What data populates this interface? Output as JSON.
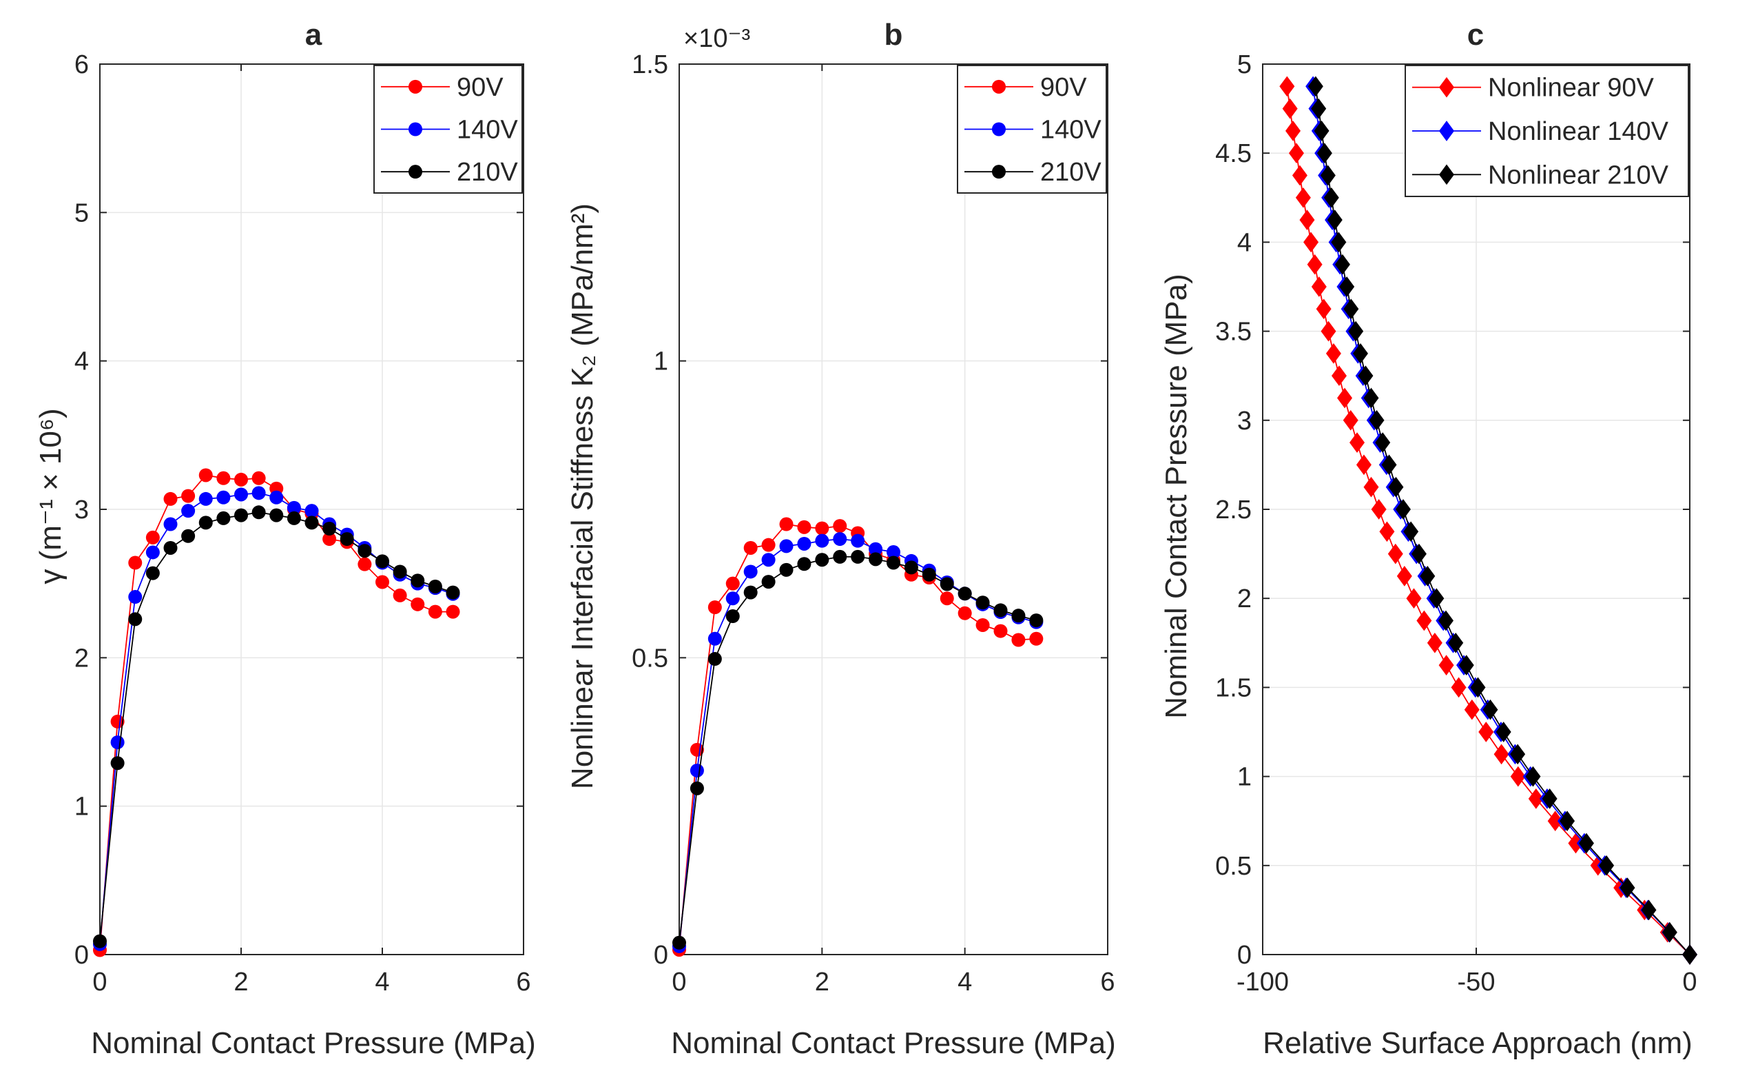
{
  "chart_data": [
    {
      "type": "line",
      "title": "a",
      "xlabel": "Nominal Contact Pressure (MPa)",
      "ylabel": "γ (m⁻¹ × 10⁶)",
      "xlim": [
        0,
        6
      ],
      "ylim": [
        0,
        6
      ],
      "xticks": [
        0,
        2,
        4,
        6
      ],
      "yticks": [
        0,
        1,
        2,
        3,
        4,
        5,
        6
      ],
      "x_tick_labels": [
        "0",
        "2",
        "4",
        "6"
      ],
      "y_tick_labels": [
        "0",
        "1",
        "2",
        "3",
        "4",
        "5",
        "6"
      ],
      "grid": true,
      "legend_position": "top-right",
      "marker": "circle",
      "x": [
        0,
        0.25,
        0.5,
        0.75,
        1,
        1.25,
        1.5,
        1.75,
        2,
        2.25,
        2.5,
        2.75,
        3,
        3.25,
        3.5,
        3.75,
        4,
        4.25,
        4.5,
        4.75,
        5
      ],
      "series": [
        {
          "name": "90V",
          "color": "#ff0000",
          "values": [
            0.03,
            1.57,
            2.64,
            2.81,
            3.07,
            3.09,
            3.23,
            3.21,
            3.2,
            3.21,
            3.14,
            3.0,
            2.97,
            2.8,
            2.78,
            2.63,
            2.51,
            2.42,
            2.36,
            2.31,
            2.31
          ]
        },
        {
          "name": "140V",
          "color": "#0000ff",
          "values": [
            0.07,
            1.43,
            2.41,
            2.71,
            2.9,
            2.99,
            3.07,
            3.08,
            3.1,
            3.11,
            3.08,
            3.01,
            2.99,
            2.9,
            2.83,
            2.74,
            2.64,
            2.56,
            2.5,
            2.47,
            2.43
          ]
        },
        {
          "name": "210V",
          "color": "#000000",
          "values": [
            0.09,
            1.29,
            2.26,
            2.57,
            2.74,
            2.82,
            2.91,
            2.94,
            2.96,
            2.98,
            2.96,
            2.94,
            2.91,
            2.87,
            2.8,
            2.72,
            2.65,
            2.58,
            2.52,
            2.48,
            2.44
          ]
        }
      ]
    },
    {
      "type": "line",
      "title": "b",
      "xlabel": "Nominal Contact Pressure (MPa)",
      "ylabel": "Nonlinear Interfacial Stiffness K₂ (MPa/nm²)",
      "exponent_label": "×10⁻³",
      "xlim": [
        0,
        6
      ],
      "ylim": [
        0,
        1.5
      ],
      "xticks": [
        0,
        2,
        4,
        6
      ],
      "yticks": [
        0,
        0.5,
        1,
        1.5
      ],
      "x_tick_labels": [
        "0",
        "2",
        "4",
        "6"
      ],
      "y_tick_labels": [
        "0",
        "0.5",
        "1",
        "1.5"
      ],
      "grid": true,
      "legend_position": "top-right",
      "marker": "circle",
      "x": [
        0,
        0.25,
        0.5,
        0.75,
        1,
        1.25,
        1.5,
        1.75,
        2,
        2.25,
        2.5,
        2.75,
        3,
        3.25,
        3.5,
        3.75,
        4,
        4.25,
        4.5,
        4.75,
        5
      ],
      "series": [
        {
          "name": "90V",
          "color": "#ff0000",
          "values": [
            0.008,
            0.345,
            0.585,
            0.625,
            0.685,
            0.69,
            0.725,
            0.72,
            0.718,
            0.722,
            0.71,
            0.675,
            0.665,
            0.64,
            0.635,
            0.6,
            0.575,
            0.555,
            0.545,
            0.53,
            0.532
          ]
        },
        {
          "name": "140V",
          "color": "#0000ff",
          "values": [
            0.014,
            0.31,
            0.532,
            0.6,
            0.645,
            0.665,
            0.688,
            0.692,
            0.697,
            0.7,
            0.697,
            0.683,
            0.678,
            0.663,
            0.647,
            0.627,
            0.608,
            0.59,
            0.577,
            0.568,
            0.56
          ]
        },
        {
          "name": "210V",
          "color": "#000000",
          "values": [
            0.02,
            0.28,
            0.498,
            0.57,
            0.61,
            0.628,
            0.648,
            0.658,
            0.665,
            0.67,
            0.67,
            0.666,
            0.66,
            0.652,
            0.64,
            0.624,
            0.608,
            0.593,
            0.58,
            0.571,
            0.563
          ]
        }
      ]
    },
    {
      "type": "line",
      "title": "c",
      "xlabel": "Relative Surface Approach (nm)",
      "ylabel": "Nominal Contact Pressure (MPa)",
      "xlim": [
        -100,
        0
      ],
      "ylim": [
        0,
        5
      ],
      "xticks": [
        -100,
        -50,
        0
      ],
      "yticks": [
        0,
        0.5,
        1,
        1.5,
        2,
        2.5,
        3,
        3.5,
        4,
        4.5,
        5
      ],
      "x_tick_labels": [
        "-100",
        "-50",
        "0"
      ],
      "y_tick_labels": [
        "0",
        "0.5",
        "1",
        "1.5",
        "2",
        "2.5",
        "3",
        "3.5",
        "4",
        "4.5",
        "5"
      ],
      "grid": true,
      "legend_position": "top-right",
      "marker": "diamond",
      "y": [
        0,
        0.125,
        0.25,
        0.375,
        0.5,
        0.625,
        0.75,
        0.875,
        1,
        1.125,
        1.25,
        1.375,
        1.5,
        1.625,
        1.75,
        1.875,
        2,
        2.125,
        2.25,
        2.375,
        2.5,
        2.625,
        2.75,
        2.875,
        3,
        3.125,
        3.25,
        3.375,
        3.5,
        3.625,
        3.75,
        3.875,
        4,
        4.125,
        4.25,
        4.375,
        4.5,
        4.625,
        4.75,
        4.875
      ],
      "series": [
        {
          "name": "Nonlinear 90V",
          "color": "#ff0000",
          "x": [
            0,
            -5.2,
            -10.6,
            -16.1,
            -21.5,
            -26.7,
            -31.5,
            -36.0,
            -40.2,
            -44.1,
            -47.7,
            -51.0,
            -54.1,
            -57.0,
            -59.7,
            -62.2,
            -64.6,
            -66.8,
            -68.9,
            -70.9,
            -72.8,
            -74.6,
            -76.3,
            -77.9,
            -79.4,
            -80.8,
            -82.1,
            -83.4,
            -84.6,
            -85.7,
            -86.8,
            -87.8,
            -88.7,
            -89.6,
            -90.5,
            -91.3,
            -92.1,
            -92.9,
            -93.6,
            -94.3
          ]
        },
        {
          "name": "Nonlinear 140V",
          "color": "#0000ff",
          "x": [
            0,
            -4.8,
            -9.8,
            -14.9,
            -19.9,
            -24.7,
            -29.2,
            -33.4,
            -37.3,
            -40.9,
            -44.2,
            -47.3,
            -50.2,
            -52.9,
            -55.4,
            -57.7,
            -59.9,
            -62.0,
            -64.0,
            -65.9,
            -67.7,
            -69.4,
            -71.0,
            -72.5,
            -73.9,
            -75.2,
            -76.5,
            -77.7,
            -78.8,
            -79.9,
            -80.9,
            -81.9,
            -82.8,
            -83.7,
            -84.5,
            -85.3,
            -86.1,
            -86.8,
            -87.5,
            -88.2
          ]
        },
        {
          "name": "Nonlinear 210V",
          "color": "#000000",
          "x": [
            0,
            -4.7,
            -9.6,
            -14.6,
            -19.5,
            -24.2,
            -28.7,
            -32.8,
            -36.7,
            -40.3,
            -43.6,
            -46.7,
            -49.6,
            -52.3,
            -54.8,
            -57.1,
            -59.3,
            -61.4,
            -63.4,
            -65.3,
            -67.1,
            -68.8,
            -70.4,
            -71.9,
            -73.3,
            -74.6,
            -75.9,
            -77.1,
            -78.2,
            -79.3,
            -80.3,
            -81.3,
            -82.2,
            -83.1,
            -83.9,
            -84.7,
            -85.5,
            -86.2,
            -86.9,
            -87.6
          ]
        }
      ]
    }
  ]
}
